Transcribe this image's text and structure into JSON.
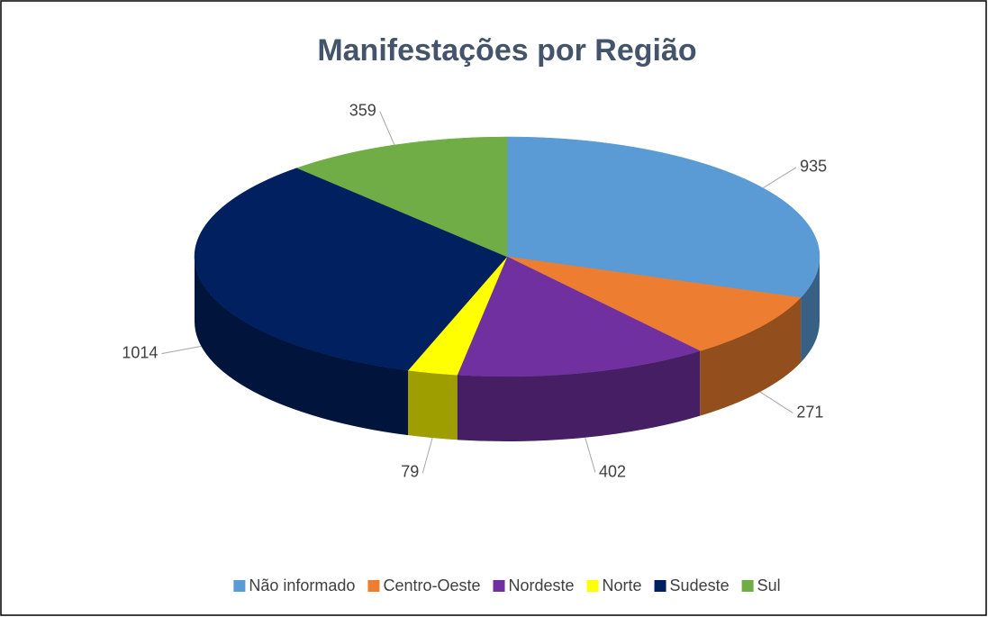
{
  "chart_data": {
    "type": "pie3d",
    "title": "Manifestações por Região",
    "categories": [
      "Não informado",
      "Centro-Oeste",
      "Nordeste",
      "Norte",
      "Sudeste",
      "Sul"
    ],
    "values": [
      935,
      271,
      402,
      79,
      1014,
      359
    ],
    "colors": [
      "#5b9bd5",
      "#ed7d31",
      "#7030a0",
      "#ffff00",
      "#002060",
      "#70ad47"
    ],
    "legend": "bottom"
  }
}
